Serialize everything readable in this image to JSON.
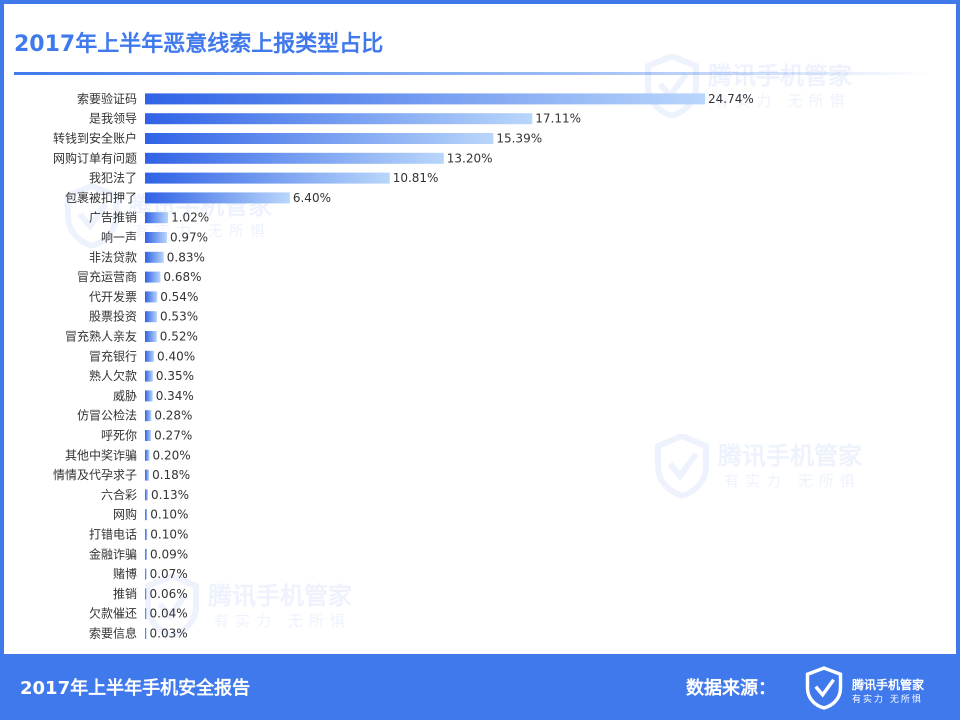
{
  "header": {
    "title": "2017年上半年恶意线索上报类型占比"
  },
  "footer": {
    "title": "2017年上半年手机安全报告",
    "source_label": "数据来源：",
    "brand_name": "腾讯手机管家",
    "brand_slogan": "有实力 无所惧"
  },
  "watermark": {
    "text": "腾讯手机管家",
    "sub": "有实力 无所惧"
  },
  "colors": {
    "accent": "#3f79ec",
    "bar_start": "#2f62e6",
    "bar_end": "#b9d6fb"
  },
  "chart_data": {
    "type": "bar",
    "orientation": "horizontal",
    "title": "2017年上半年恶意线索上报类型占比",
    "value_suffix": "%",
    "xlim": [
      0,
      24.74
    ],
    "grid": false,
    "categories": [
      "索要验证码",
      "是我领导",
      "转钱到安全账户",
      "网购订单有问题",
      "我犯法了",
      "包裹被扣押了",
      "广告推销",
      "响一声",
      "非法贷款",
      "冒充运营商",
      "代开发票",
      "股票投资",
      "冒充熟人亲友",
      "冒充银行",
      "熟人欠款",
      "威胁",
      "仿冒公检法",
      "呼死你",
      "其他中奖诈骗",
      "情情及代孕求子",
      "六合彩",
      "网购",
      "打错电话",
      "金融诈骗",
      "赌博",
      "推销",
      "欠款催还",
      "索要信息"
    ],
    "values": [
      24.74,
      17.11,
      15.39,
      13.2,
      10.81,
      6.4,
      1.02,
      0.97,
      0.83,
      0.68,
      0.54,
      0.53,
      0.52,
      0.4,
      0.35,
      0.34,
      0.28,
      0.27,
      0.2,
      0.18,
      0.13,
      0.1,
      0.1,
      0.09,
      0.07,
      0.06,
      0.04,
      0.03
    ],
    "value_labels": [
      "24.74%",
      "17.11%",
      "15.39%",
      "13.20%",
      "10.81%",
      "6.40%",
      "1.02%",
      "0.97%",
      "0.83%",
      "0.68%",
      "0.54%",
      "0.53%",
      "0.52%",
      "0.40%",
      "0.35%",
      "0.34%",
      "0.28%",
      "0.27%",
      "0.20%",
      "0.18%",
      "0.13%",
      "0.10%",
      "0.10%",
      "0.09%",
      "0.07%",
      "0.06%",
      "0.04%",
      "0.03%"
    ]
  }
}
